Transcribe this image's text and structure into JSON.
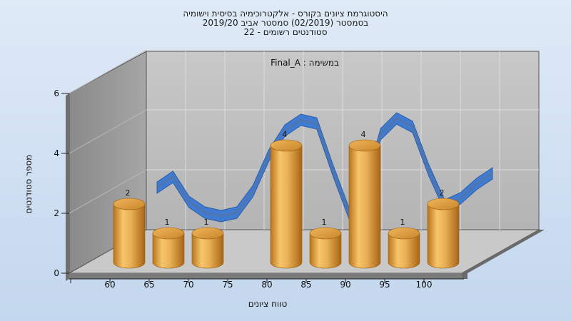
{
  "header": {
    "line1": "היסטוגרמת ציונים בקורס - אלקטרוכימיה בסיסית וישומיה",
    "line2": "בסמסטר  (02/2019)  סמסטר אביב 2019/20",
    "line3": "סטודנטים רשומים - 22"
  },
  "chart_data": {
    "type": "bar",
    "title": "",
    "annotation": "במשימה : Final_A",
    "xlabel": "טווח ציונים",
    "ylabel": "מספר סטודנטים",
    "x_ticks": [
      "60",
      "65",
      "70",
      "75",
      "80",
      "85",
      "90",
      "95",
      "100"
    ],
    "y_ticks": [
      0,
      2,
      4,
      6
    ],
    "ylim": [
      0,
      6
    ],
    "categories": [
      "60",
      "65",
      "70",
      "75",
      "80",
      "85",
      "90",
      "95",
      "100"
    ],
    "values": [
      2,
      1,
      1,
      0,
      4,
      1,
      4,
      1,
      2
    ],
    "labels": [
      "2",
      "1",
      "1",
      "",
      "4",
      "1",
      "4",
      "1",
      "2"
    ],
    "curve": {
      "color": "#3a78d4",
      "style": "3d-ribbon"
    },
    "bar_color": "#e0a03c",
    "grid": true,
    "perspective": "3d"
  }
}
